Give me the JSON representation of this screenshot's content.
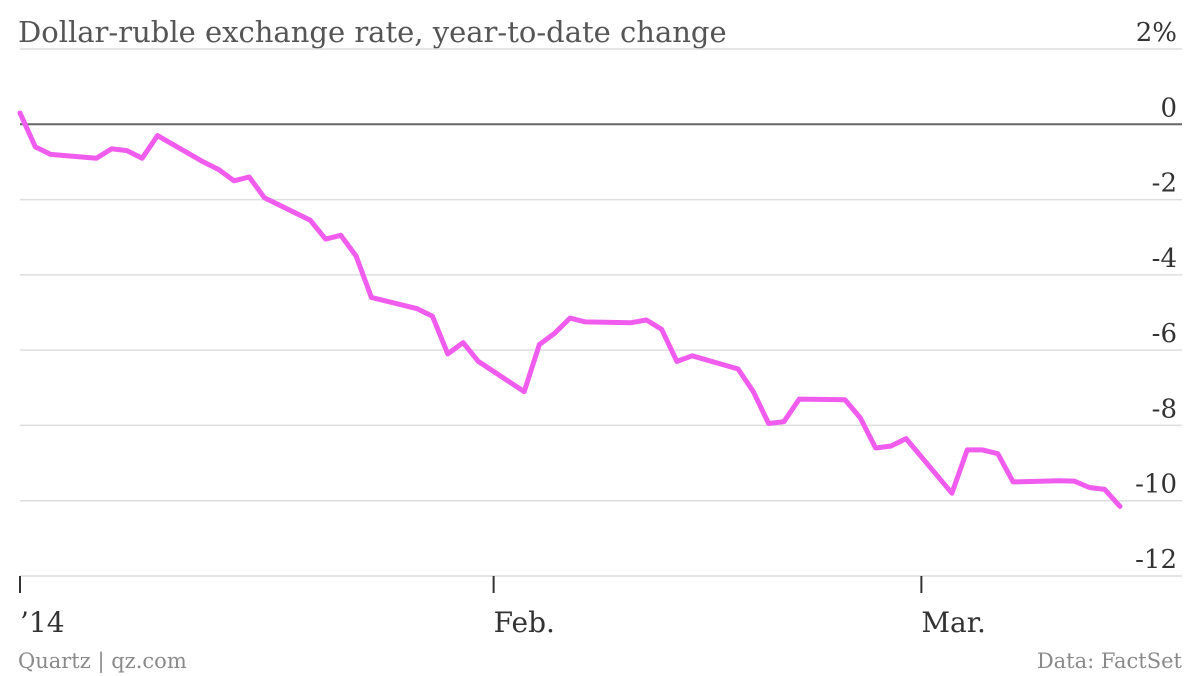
{
  "chart_data": {
    "type": "line",
    "title": "Dollar-ruble exchange rate, year-to-date change",
    "ylim": [
      -12,
      2
    ],
    "y_ticks": [
      2,
      0,
      -2,
      -4,
      -6,
      -8,
      -10,
      -12
    ],
    "y_tick_labels": [
      "2%",
      "0",
      "-2",
      "-4",
      "-6",
      "-8",
      "-10",
      "-12"
    ],
    "x_tick_labels": [
      {
        "label": "’14",
        "date": "2014-01-01"
      },
      {
        "label": "Feb.",
        "date": "2014-02-01"
      },
      {
        "label": "Mar.",
        "date": "2014-03-01"
      }
    ],
    "x_range": [
      "2014-01-01",
      "2014-03-14"
    ],
    "grid": true,
    "line_color": "#f05ced",
    "series": [
      {
        "x": [
          "2014-01-01",
          "2014-01-02",
          "2014-01-03",
          "2014-01-06",
          "2014-01-07",
          "2014-01-08",
          "2014-01-09",
          "2014-01-10",
          "2014-01-13",
          "2014-01-14",
          "2014-01-15",
          "2014-01-16",
          "2014-01-17",
          "2014-01-20",
          "2014-01-21",
          "2014-01-22",
          "2014-01-23",
          "2014-01-24",
          "2014-01-27",
          "2014-01-28",
          "2014-01-29",
          "2014-01-30",
          "2014-01-31",
          "2014-02-03",
          "2014-02-04",
          "2014-02-05",
          "2014-02-06",
          "2014-02-07",
          "2014-02-10",
          "2014-02-11",
          "2014-02-12",
          "2014-02-13",
          "2014-02-14",
          "2014-02-17",
          "2014-02-18",
          "2014-02-19",
          "2014-02-20",
          "2014-02-21",
          "2014-02-24",
          "2014-02-25",
          "2014-02-26",
          "2014-02-27",
          "2014-02-28",
          "2014-03-03",
          "2014-03-04",
          "2014-03-05",
          "2014-03-06",
          "2014-03-07",
          "2014-03-10",
          "2014-03-11",
          "2014-03-12",
          "2014-03-13",
          "2014-03-14"
        ],
        "values": [
          0.3,
          -0.6,
          -0.8,
          -0.9,
          -0.65,
          -0.7,
          -0.9,
          -0.3,
          -1.0,
          -1.2,
          -1.5,
          -1.4,
          -1.95,
          -2.55,
          -3.05,
          -2.95,
          -3.5,
          -4.6,
          -4.9,
          -5.1,
          -6.1,
          -5.8,
          -6.3,
          -7.1,
          -5.85,
          -5.55,
          -5.15,
          -5.25,
          -5.27,
          -5.2,
          -5.45,
          -6.3,
          -6.15,
          -6.5,
          -7.1,
          -7.95,
          -7.9,
          -7.3,
          -7.32,
          -7.8,
          -8.6,
          -8.55,
          -8.35,
          -9.8,
          -8.65,
          -8.65,
          -8.75,
          -9.5,
          -9.47,
          -9.48,
          -9.65,
          -9.7,
          -10.15
        ]
      }
    ]
  },
  "footer": {
    "source_left": "Quartz | qz.com",
    "source_right": "Data: FactSet"
  }
}
